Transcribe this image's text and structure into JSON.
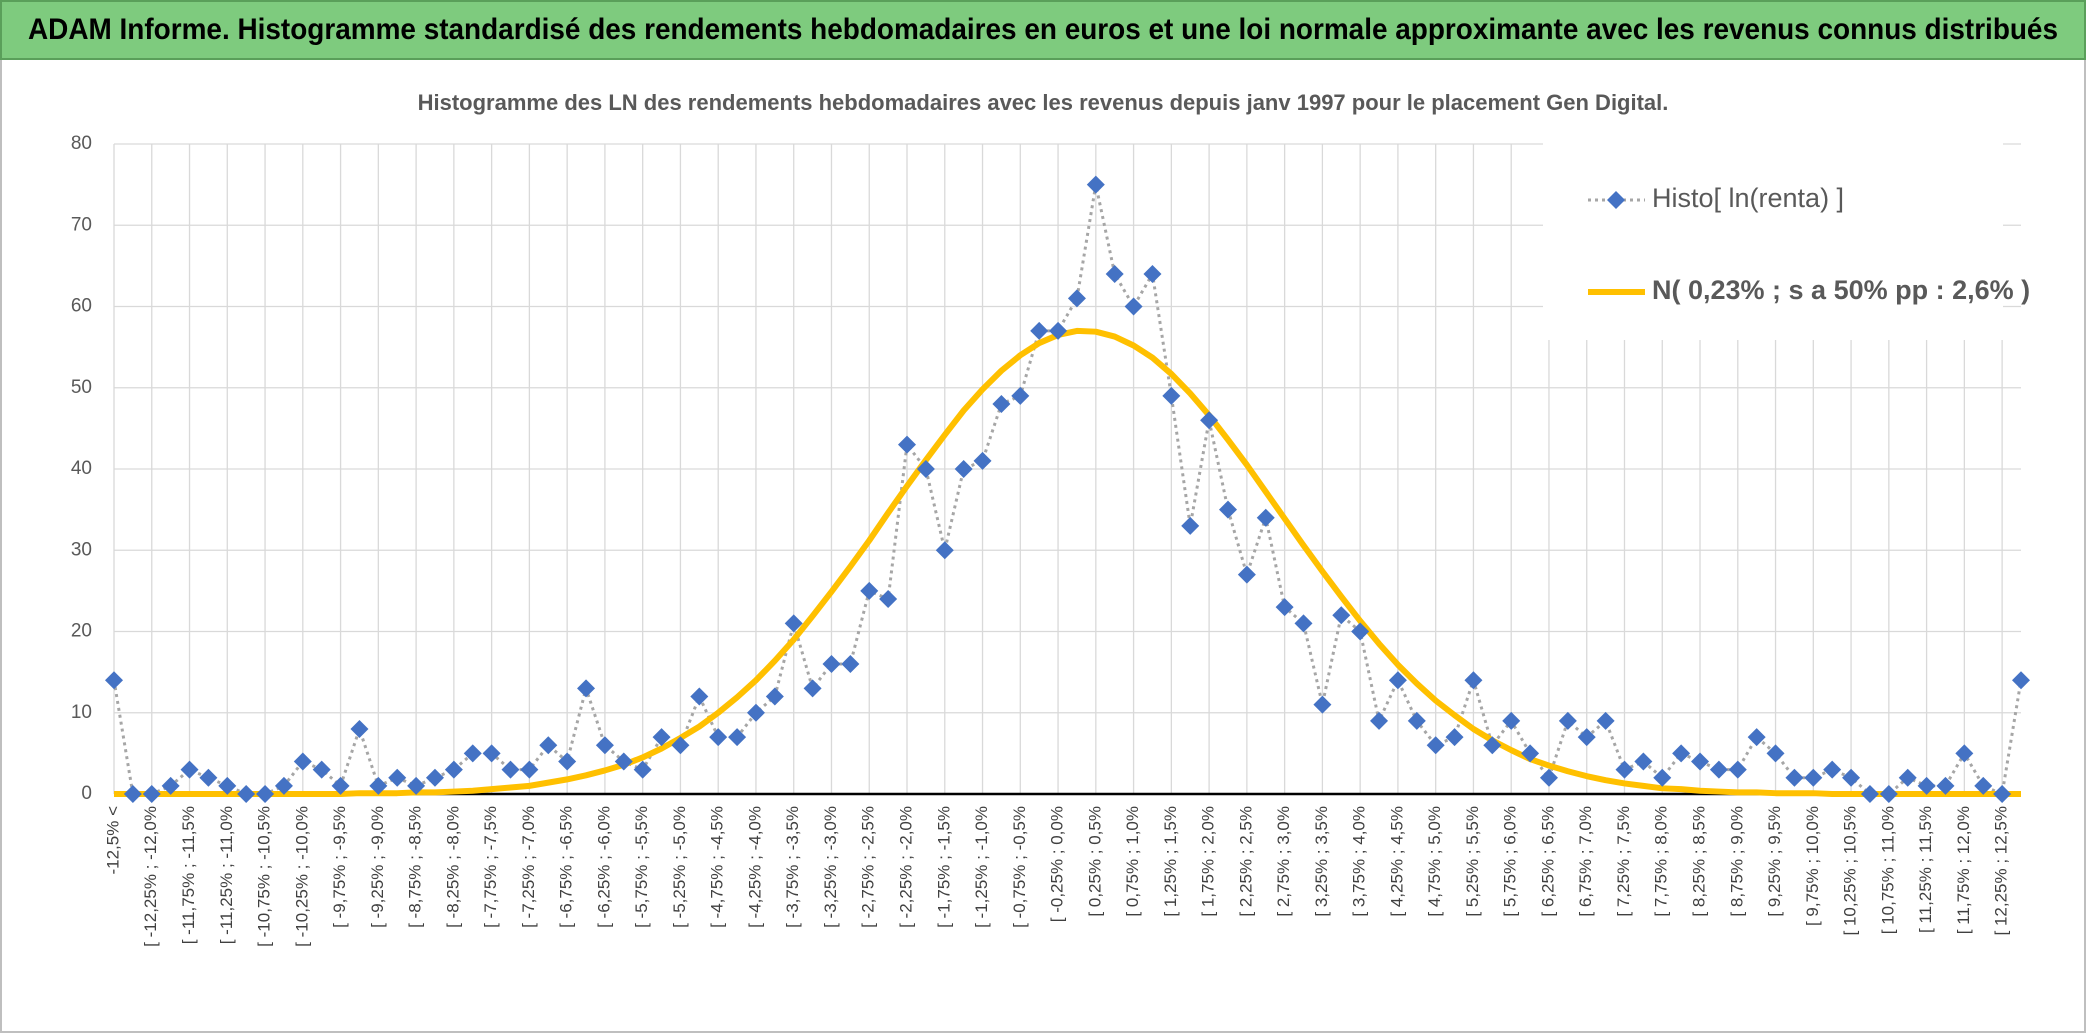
{
  "page_title": "ADAM Informe. Histogramme standardisé des rendements hebdomadaires en euros et une loi normale approximante avec les revenus connus distribués",
  "chart_data": {
    "type": "line",
    "title": "Histogramme des LN des rendements hebdomadaires avec les revenus depuis janv 1997 pour le placement Gen Digital.",
    "categories": [
      "-12,5% <",
      null,
      "[ -12,25% ; -12,0%",
      null,
      "[ -11,75% ; -11,5%",
      null,
      "[ -11,25% ; -11,0%",
      null,
      "[ -10,75% ; -10,5%",
      null,
      "[ -10,25% ; -10,0%",
      null,
      "[ -9,75% ; -9,5%",
      null,
      "[ -9,25% ; -9,0%",
      null,
      "[ -8,75% ; -8,5%",
      null,
      "[ -8,25% ; -8,0%",
      null,
      "[ -7,75% ; -7,5%",
      null,
      "[ -7,25% ; -7,0%",
      null,
      "[ -6,75% ; -6,5%",
      null,
      "[ -6,25% ; -6,0%",
      null,
      "[ -5,75% ; -5,5%",
      null,
      "[ -5,25% ; -5,0%",
      null,
      "[ -4,75% ; -4,5%",
      null,
      "[ -4,25% ; -4,0%",
      null,
      "[ -3,75% ; -3,5%",
      null,
      "[ -3,25% ; -3,0%",
      null,
      "[ -2,75% ; -2,5%",
      null,
      "[ -2,25% ; -2,0%",
      null,
      "[ -1,75% ; -1,5%",
      null,
      "[ -1,25% ; -1,0%",
      null,
      "[ -0,75% ; -0,5%",
      null,
      "[ -0,25% ; 0,0%",
      null,
      "[ 0,25% ; 0,5%",
      null,
      "[ 0,75% ; 1,0%",
      null,
      "[ 1,25% ; 1,5%",
      null,
      "[ 1,75% ; 2,0%",
      null,
      "[ 2,25% ; 2,5%",
      null,
      "[ 2,75% ; 3,0%",
      null,
      "[ 3,25% ; 3,5%",
      null,
      "[ 3,75% ; 4,0%",
      null,
      "[ 4,25% ; 4,5%",
      null,
      "[ 4,75% ; 5,0%",
      null,
      "[ 5,25% ; 5,5%",
      null,
      "[ 5,75% ; 6,0%",
      null,
      "[ 6,25% ; 6,5%",
      null,
      "[ 6,75% ; 7,0%",
      null,
      "[ 7,25% ; 7,5%",
      null,
      "[ 7,75% ; 8,0%",
      null,
      "[ 8,25% ; 8,5%",
      null,
      "[ 8,75% ; 9,0%",
      null,
      "[ 9,25% ; 9,5%",
      null,
      "[ 9,75% ; 10,0%",
      null,
      "[ 10,25% ; 10,5%",
      null,
      "[ 10,75% ; 11,0%",
      null,
      "[ 11,25% ; 11,5%",
      null,
      "[ 11,75% ; 12,0%",
      null,
      "[ 12,25% ; 12,5%",
      null
    ],
    "series": [
      {
        "name": "Histo[ ln(renta) ]",
        "color": "#4472c4",
        "line_color": "#a6a6a6",
        "marker": "diamond",
        "values": [
          14,
          0,
          0,
          1,
          3,
          2,
          1,
          0,
          0,
          1,
          4,
          3,
          1,
          8,
          1,
          2,
          1,
          2,
          3,
          5,
          5,
          3,
          3,
          6,
          4,
          13,
          6,
          4,
          3,
          7,
          6,
          12,
          7,
          7,
          10,
          12,
          21,
          13,
          16,
          16,
          25,
          24,
          43,
          40,
          30,
          40,
          41,
          48,
          49,
          57,
          57,
          61,
          75,
          64,
          60,
          64,
          49,
          33,
          46,
          35,
          27,
          34,
          23,
          21,
          11,
          22,
          20,
          9,
          14,
          9,
          6,
          7,
          14,
          6,
          9,
          5,
          2,
          9,
          7,
          9,
          3,
          4,
          2,
          5,
          4,
          3,
          3,
          7,
          5,
          2,
          2,
          3,
          2,
          0,
          0,
          2,
          1,
          1,
          5,
          1,
          0,
          14
        ]
      },
      {
        "name": "N( 0,23% ; s a 50% pp : 2,6% )",
        "color": "#ffc000",
        "values": [
          0,
          0,
          0,
          0,
          0,
          0,
          0,
          0,
          0,
          0,
          0,
          0,
          0,
          0.1,
          0.1,
          0.1,
          0.2,
          0.2,
          0.3,
          0.4,
          0.6,
          0.8,
          1.0,
          1.4,
          1.8,
          2.3,
          2.9,
          3.6,
          4.5,
          5.6,
          6.9,
          8.3,
          10.0,
          11.9,
          14.0,
          16.4,
          19.0,
          21.9,
          24.9,
          28.0,
          31.2,
          34.6,
          37.9,
          41.1,
          44.2,
          47.2,
          49.8,
          52.1,
          54.0,
          55.5,
          56.5,
          57.0,
          56.9,
          56.3,
          55.2,
          53.7,
          51.7,
          49.3,
          46.6,
          43.6,
          40.5,
          37.2,
          33.9,
          30.6,
          27.4,
          24.3,
          21.3,
          18.5,
          15.9,
          13.6,
          11.5,
          9.7,
          8.0,
          6.6,
          5.4,
          4.3,
          3.5,
          2.8,
          2.2,
          1.7,
          1.3,
          1.0,
          0.7,
          0.6,
          0.4,
          0.3,
          0.2,
          0.2,
          0.1,
          0.1,
          0.1,
          0,
          0,
          0,
          0,
          0,
          0,
          0,
          0,
          0,
          0,
          0
        ]
      }
    ],
    "ylim": [
      0,
      80
    ],
    "yticks": [
      0,
      10,
      20,
      30,
      40,
      50,
      60,
      70,
      80
    ],
    "grid": true,
    "legend": "top-right"
  }
}
